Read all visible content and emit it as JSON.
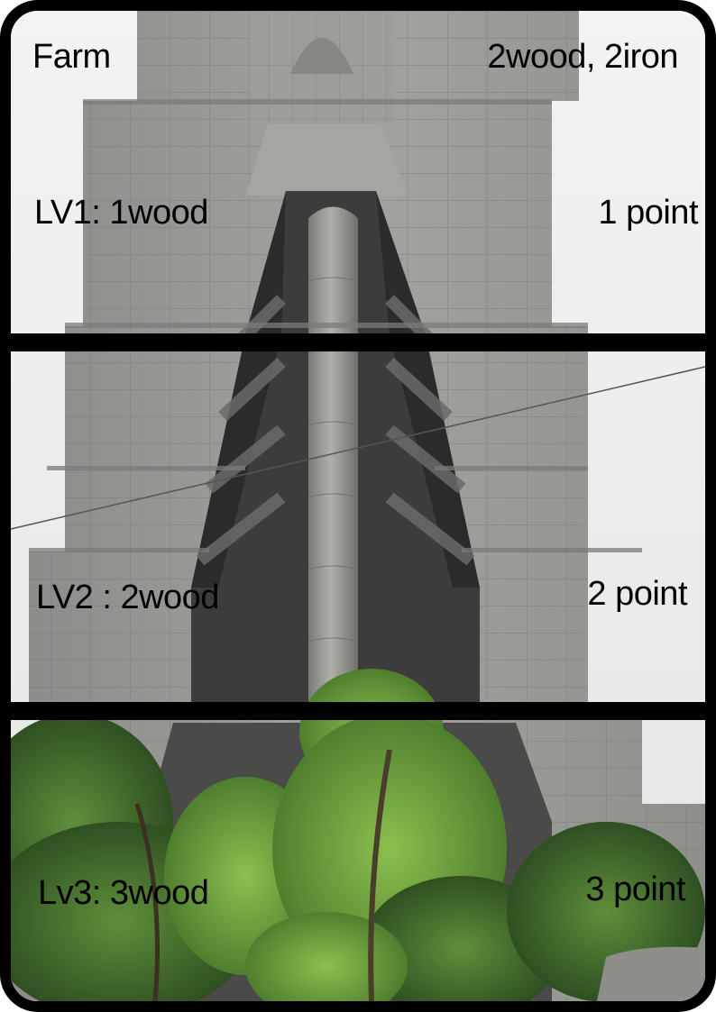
{
  "card": {
    "title": "Farm",
    "cost": "2wood, 2iron",
    "levels": [
      {
        "requirement": "LV1: 1wood",
        "reward": "1 point"
      },
      {
        "requirement": "LV2 : 2wood",
        "reward": "2 point"
      },
      {
        "requirement": "Lv3: 3wood",
        "reward": "3 point"
      }
    ]
  },
  "colors": {
    "border": "#000000",
    "text": "#000000",
    "concrete": "#9a9b98",
    "foliage": "#5d8a3c"
  }
}
